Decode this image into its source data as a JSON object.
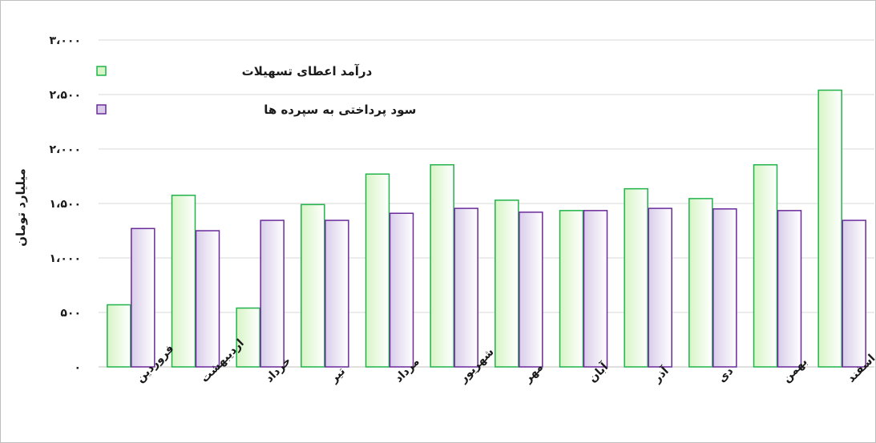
{
  "chart_data": {
    "type": "bar",
    "ylabel": "میلیارد تومان",
    "ylim": [
      0,
      3000
    ],
    "yticks": [
      0,
      500,
      1000,
      1500,
      2000,
      2500,
      3000
    ],
    "ytick_labels": [
      "۰",
      "۵۰۰",
      "۱،۰۰۰",
      "۱،۵۰۰",
      "۲،۰۰۰",
      "۲،۵۰۰",
      "۳،۰۰۰"
    ],
    "grid": true,
    "legend_position": "top-left",
    "categories": [
      "فروردین",
      "اردیبهشت",
      "خرداد",
      "تیر",
      "مرداد",
      "شهریور",
      "مهر",
      "آبان",
      "آذر",
      "دی",
      "بهمن",
      "اسفند"
    ],
    "series": [
      {
        "name": "درآمد اعطای تسهیلات",
        "color": "#21b34a",
        "fill": "#d7f5c6",
        "values": [
          570,
          1575,
          540,
          1490,
          1770,
          1855,
          1530,
          1435,
          1635,
          1545,
          1855,
          2540
        ]
      },
      {
        "name": "سود پرداختی به سپرده ها",
        "color": "#6a2a9a",
        "fill": "#d9cdea",
        "values": [
          1270,
          1250,
          1345,
          1345,
          1410,
          1455,
          1420,
          1435,
          1455,
          1450,
          1435,
          1345
        ]
      }
    ]
  }
}
